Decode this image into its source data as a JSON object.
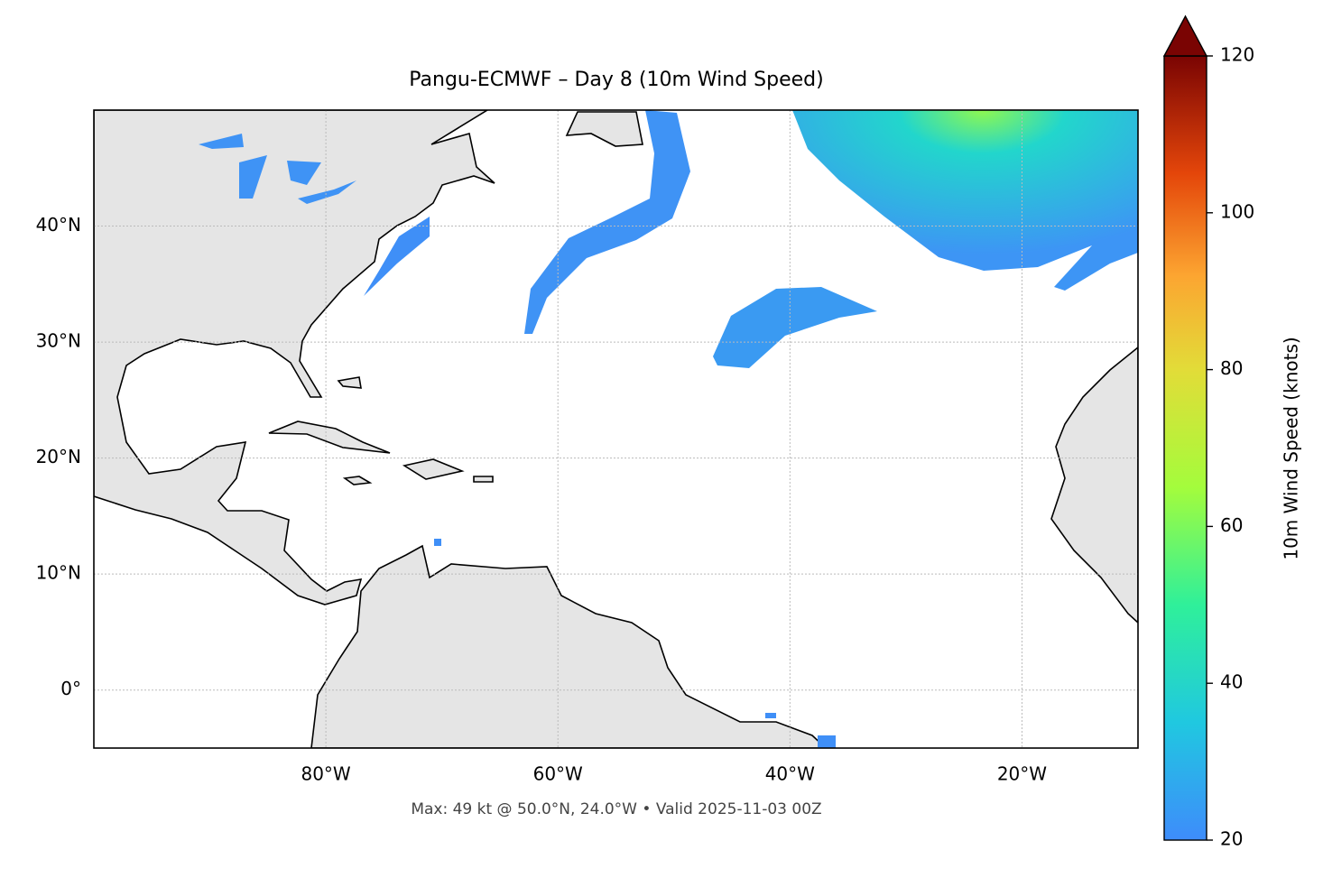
{
  "chart_data": {
    "type": "map",
    "title": "Pangu-ECMWF – Day 8 (10m Wind Speed)",
    "footer": "Max: 49 kt @ 50.0°N, 24.0°W • Valid 2025-11-03 00Z",
    "xlim": [
      -100,
      -10
    ],
    "ylim": [
      -5,
      50
    ],
    "xticks": [
      {
        "value": -80,
        "label": "80°W"
      },
      {
        "value": -60,
        "label": "60°W"
      },
      {
        "value": -40,
        "label": "40°W"
      },
      {
        "value": -20,
        "label": "20°W"
      }
    ],
    "yticks": [
      {
        "value": 0,
        "label": "0°"
      },
      {
        "value": 10,
        "label": "10°N"
      },
      {
        "value": 20,
        "label": "20°N"
      },
      {
        "value": 30,
        "label": "30°N"
      },
      {
        "value": 40,
        "label": "40°N"
      }
    ],
    "grid": true,
    "colorbar": {
      "label": "10m Wind Speed (knots)",
      "lim": [
        20,
        120
      ],
      "ticks": [
        20,
        40,
        60,
        80,
        100,
        120
      ]
    }
  }
}
